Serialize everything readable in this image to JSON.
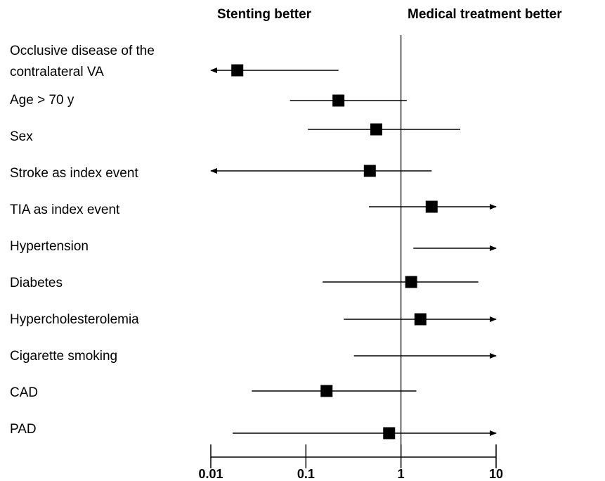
{
  "headers": {
    "left": "Stenting better",
    "right": "Medical treatment better"
  },
  "chart_data": {
    "type": "forest",
    "xscale": "log",
    "xlim": [
      0.01,
      10
    ],
    "reference_line": 1,
    "xticks": [
      "0.01",
      "0.1",
      "1",
      "10"
    ],
    "xtick_values": [
      0.01,
      0.1,
      1,
      10
    ],
    "rows": [
      {
        "label": [
          "Occlusive disease of the",
          "contralateral VA"
        ],
        "estimate": 0.019,
        "lower": 0.01,
        "upper": 0.22,
        "lower_arrow": true,
        "upper_arrow": false
      },
      {
        "label": [
          "Age > 70 y"
        ],
        "estimate": 0.22,
        "lower": 0.068,
        "upper": 1.15,
        "lower_arrow": false,
        "upper_arrow": false
      },
      {
        "label": [
          "Sex"
        ],
        "estimate": 0.55,
        "lower": 0.105,
        "upper": 4.2,
        "lower_arrow": false,
        "upper_arrow": false
      },
      {
        "label": [
          "Stroke as index event"
        ],
        "estimate": 0.47,
        "lower": 0.01,
        "upper": 2.1,
        "lower_arrow": true,
        "upper_arrow": false
      },
      {
        "label": [
          "TIA as index event"
        ],
        "estimate": 2.1,
        "lower": 0.46,
        "upper": 10,
        "lower_arrow": false,
        "upper_arrow": true
      },
      {
        "label": [
          "Hypertension"
        ],
        "estimate": null,
        "lower": 1.35,
        "upper": 10,
        "lower_arrow": false,
        "upper_arrow": true
      },
      {
        "label": [
          "Diabetes"
        ],
        "estimate": 1.28,
        "lower": 0.15,
        "upper": 6.5,
        "lower_arrow": false,
        "upper_arrow": false
      },
      {
        "label": [
          "Hypercholesterolemia"
        ],
        "estimate": 1.6,
        "lower": 0.25,
        "upper": 10,
        "lower_arrow": false,
        "upper_arrow": true
      },
      {
        "label": [
          "Cigarette smoking"
        ],
        "estimate": null,
        "lower": 0.32,
        "upper": 10,
        "lower_arrow": false,
        "upper_arrow": true
      },
      {
        "label": [
          "CAD"
        ],
        "estimate": 0.165,
        "lower": 0.027,
        "upper": 1.45,
        "lower_arrow": false,
        "upper_arrow": false
      },
      {
        "label": [
          "PAD"
        ],
        "estimate": 0.75,
        "lower": 0.017,
        "upper": 10,
        "lower_arrow": false,
        "upper_arrow": true
      }
    ]
  }
}
